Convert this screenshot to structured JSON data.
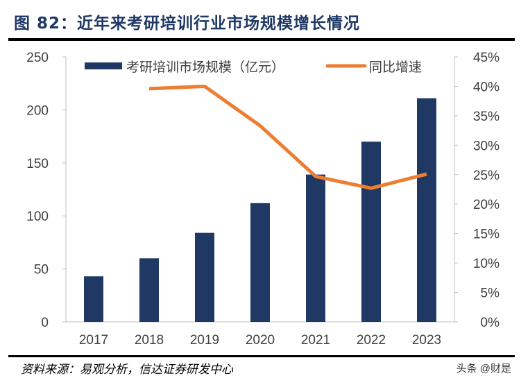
{
  "title": "图 82：近年来考研培训行业市场规模增长情况",
  "source": "资料来源：易观分析，信达证券研发中心",
  "watermark": "头条 @财是",
  "chart_data": {
    "type": "bar+line",
    "categories": [
      "2017",
      "2018",
      "2019",
      "2020",
      "2021",
      "2022",
      "2023"
    ],
    "series": [
      {
        "name": "考研培训市场规模（亿元）",
        "type": "bar",
        "axis": "left",
        "color": "#1f3864",
        "values": [
          43,
          60,
          84,
          112,
          139,
          170,
          211
        ]
      },
      {
        "name": "同比增速",
        "type": "line",
        "axis": "right",
        "color": "#ed7d31",
        "values": [
          null,
          39.6,
          40.0,
          33.3,
          24.7,
          22.7,
          25.1
        ]
      }
    ],
    "y_left": {
      "ylim": [
        0,
        250
      ],
      "ticks": [
        "0",
        "50",
        "100",
        "150",
        "200",
        "250"
      ]
    },
    "y_right": {
      "ylim": [
        0,
        45
      ],
      "ticks": [
        "0%",
        "5%",
        "10%",
        "15%",
        "20%",
        "25%",
        "30%",
        "35%",
        "40%",
        "45%"
      ]
    },
    "grid": false,
    "legend": "top"
  }
}
